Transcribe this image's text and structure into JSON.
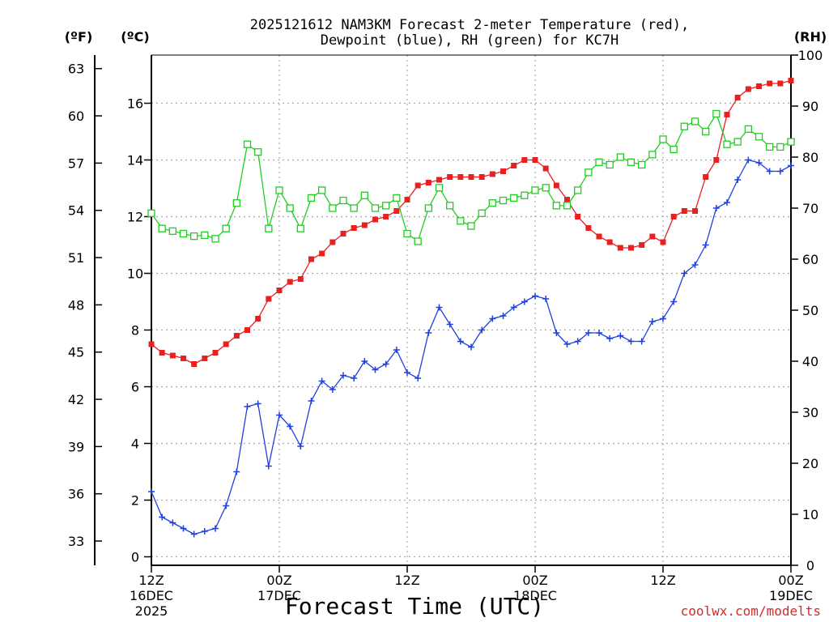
{
  "chart_data": {
    "type": "line",
    "title_line1": "2025121612 NAM3KM Forecast 2-meter Temperature (red),",
    "title_line2": "Dewpoint (blue), RH (green) for KC7H",
    "xlabel": "Forecast Time (UTC)",
    "credit": "coolwx.com/modelts",
    "x_range_hours": [
      0,
      60
    ],
    "y_left_celsius": {
      "unit_label": "(ºC)",
      "ylim": [
        -0.3,
        17.7
      ],
      "ticks": [
        0,
        2,
        4,
        6,
        8,
        10,
        12,
        14,
        16
      ]
    },
    "y_left_fahrenheit": {
      "unit_label": "(ºF)",
      "ticks": [
        33,
        36,
        39,
        42,
        45,
        48,
        51,
        54,
        57,
        60,
        63
      ]
    },
    "y_right_rh": {
      "unit_label": "(RH)",
      "ylim": [
        0,
        100
      ],
      "ticks": [
        0,
        10,
        20,
        30,
        40,
        50,
        60,
        70,
        80,
        90,
        100
      ]
    },
    "x_ticks": [
      {
        "hour": 0,
        "line1": "12Z",
        "line2": "16DEC",
        "line3": "2025"
      },
      {
        "hour": 12,
        "line1": "00Z",
        "line2": "17DEC",
        "line3": ""
      },
      {
        "hour": 24,
        "line1": "12Z",
        "line2": "",
        "line3": ""
      },
      {
        "hour": 36,
        "line1": "00Z",
        "line2": "18DEC",
        "line3": ""
      },
      {
        "hour": 48,
        "line1": "12Z",
        "line2": "",
        "line3": ""
      },
      {
        "hour": 60,
        "line1": "00Z",
        "line2": "19DEC",
        "line3": ""
      }
    ],
    "series": [
      {
        "name": "Temperature",
        "unit": "C",
        "color": "#e82020",
        "marker": "filled-square",
        "values": [
          7.5,
          7.2,
          7.1,
          7.0,
          6.8,
          7.0,
          7.2,
          7.5,
          7.8,
          8.0,
          8.4,
          9.1,
          9.4,
          9.7,
          9.8,
          10.5,
          10.7,
          11.1,
          11.4,
          11.6,
          11.7,
          11.9,
          12.0,
          12.2,
          12.6,
          13.1,
          13.2,
          13.3,
          13.4,
          13.4,
          13.4,
          13.4,
          13.5,
          13.6,
          13.8,
          14.0,
          14.0,
          13.7,
          13.1,
          12.6,
          12.0,
          11.6,
          11.3,
          11.1,
          10.9,
          10.9,
          11.0,
          11.3,
          11.1,
          12.0,
          12.2,
          12.2,
          13.4,
          14.0,
          15.6,
          16.2,
          16.5,
          16.6,
          16.7,
          16.7,
          16.8
        ]
      },
      {
        "name": "Dewpoint",
        "unit": "C",
        "color": "#2040e0",
        "marker": "plus",
        "values": [
          2.3,
          1.4,
          1.2,
          1.0,
          0.8,
          0.9,
          1.0,
          1.8,
          3.0,
          5.3,
          5.4,
          3.2,
          5.0,
          4.6,
          3.9,
          5.5,
          6.2,
          5.9,
          6.4,
          6.3,
          6.9,
          6.6,
          6.8,
          7.3,
          6.5,
          6.3,
          7.9,
          8.8,
          8.2,
          7.6,
          7.4,
          8.0,
          8.4,
          8.5,
          8.8,
          9.0,
          9.2,
          9.1,
          7.9,
          7.5,
          7.6,
          7.9,
          7.9,
          7.7,
          7.8,
          7.6,
          7.6,
          8.3,
          8.4,
          9.0,
          10.0,
          10.3,
          11.0,
          12.3,
          12.5,
          13.3,
          14.0,
          13.9,
          13.6,
          13.6,
          13.8
        ]
      },
      {
        "name": "RH",
        "unit": "%",
        "color": "#22cc22",
        "marker": "open-square",
        "values": [
          69,
          66,
          65.5,
          65,
          64.5,
          64.7,
          64,
          66,
          71,
          82.5,
          81,
          66,
          73.5,
          70,
          66,
          72,
          73.5,
          70,
          71.5,
          70,
          72.5,
          70,
          70.5,
          72,
          65,
          63.5,
          70,
          74,
          70.5,
          67.5,
          66.5,
          69,
          71,
          71.5,
          72,
          72.5,
          73.5,
          74,
          70.5,
          70.5,
          73.5,
          77,
          79,
          78.5,
          80,
          79,
          78.5,
          80.5,
          83.5,
          81.5,
          86,
          87,
          85,
          88.5,
          82.5,
          83,
          85.5,
          84,
          82,
          82,
          83
        ]
      }
    ]
  }
}
